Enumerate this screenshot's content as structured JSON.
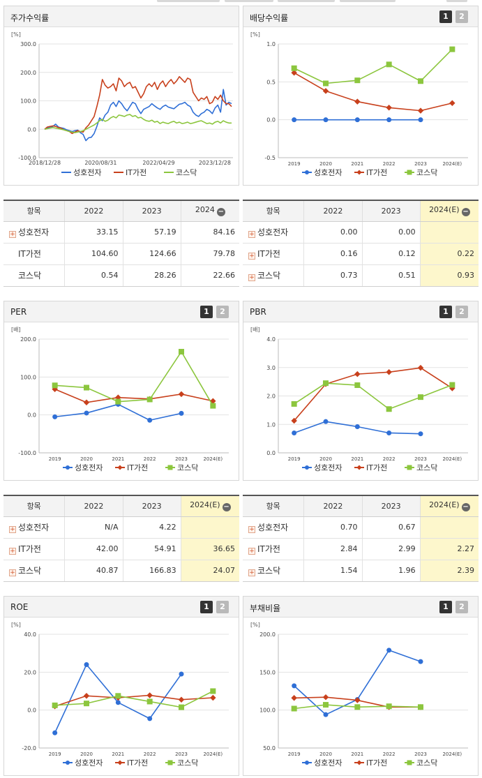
{
  "colors": {
    "s1": "#2f6fd6",
    "s2": "#c8401c",
    "s3": "#8cc63e"
  },
  "legend": [
    "성호전자",
    "IT가전",
    "코스닥"
  ],
  "charts": {
    "stock": {
      "title": "주가수익률",
      "unit": "[%]",
      "ylim": [
        -100,
        300
      ],
      "yticks": [
        "300.0",
        "200.0",
        "100.0",
        "0.0",
        "-100.0"
      ],
      "xticks": [
        "2018/12/28",
        "2020/08/31",
        "2022/04/29",
        "2023/12/28"
      ],
      "series": [
        {
          "name": "성호전자",
          "values": [
            0,
            5,
            8,
            10,
            18,
            8,
            5,
            3,
            -2,
            -5,
            -8,
            -5,
            -3,
            -12,
            -18,
            -40,
            -30,
            -28,
            -15,
            10,
            40,
            30,
            50,
            60,
            85,
            95,
            80,
            100,
            90,
            75,
            65,
            80,
            95,
            90,
            70,
            55,
            70,
            75,
            80,
            90,
            82,
            75,
            70,
            80,
            85,
            78,
            75,
            72,
            80,
            88,
            90,
            95,
            85,
            80,
            60,
            50,
            45,
            55,
            60,
            70,
            65,
            55,
            75,
            85,
            60,
            140,
            85,
            95,
            90
          ]
        },
        {
          "name": "IT가전",
          "values": [
            0,
            8,
            10,
            12,
            10,
            6,
            4,
            -2,
            -5,
            -8,
            -15,
            -10,
            -5,
            -8,
            -10,
            5,
            15,
            30,
            45,
            80,
            120,
            175,
            155,
            145,
            150,
            160,
            135,
            180,
            170,
            150,
            160,
            165,
            145,
            150,
            130,
            110,
            125,
            150,
            160,
            150,
            165,
            140,
            160,
            170,
            150,
            165,
            175,
            160,
            170,
            185,
            175,
            165,
            180,
            175,
            130,
            115,
            100,
            110,
            105,
            115,
            90,
            95,
            115,
            105,
            120,
            100,
            90,
            90,
            80
          ]
        },
        {
          "name": "코스닥",
          "values": [
            0,
            2,
            4,
            6,
            4,
            2,
            0,
            -2,
            -5,
            -8,
            -10,
            -12,
            -10,
            -8,
            -5,
            0,
            5,
            10,
            15,
            22,
            30,
            35,
            28,
            32,
            40,
            45,
            40,
            50,
            48,
            45,
            50,
            52,
            45,
            48,
            40,
            42,
            35,
            30,
            28,
            32,
            25,
            28,
            20,
            25,
            22,
            20,
            25,
            28,
            22,
            25,
            20,
            22,
            25,
            20,
            22,
            25,
            28,
            30,
            25,
            20,
            22,
            18,
            25,
            28,
            22,
            30,
            25,
            22,
            22
          ]
        }
      ]
    },
    "dividend": {
      "title": "배당수익률",
      "unit": "[%]",
      "pages": [
        "1",
        "2"
      ],
      "ylim": [
        -0.5,
        1.0
      ],
      "yticks": [
        "1.0",
        "0.5",
        "0.0",
        "-0.5"
      ],
      "x": [
        "2019",
        "2020",
        "2021",
        "2022",
        "2023",
        "2024(E)"
      ],
      "series": [
        {
          "name": "성호전자",
          "values": [
            0.0,
            0.0,
            0.0,
            0.0,
            0.0,
            null
          ]
        },
        {
          "name": "IT가전",
          "values": [
            0.62,
            0.38,
            0.24,
            0.16,
            0.12,
            0.22
          ]
        },
        {
          "name": "코스닥",
          "values": [
            0.68,
            0.48,
            0.52,
            0.73,
            0.51,
            0.93
          ]
        }
      ]
    },
    "per": {
      "title": "PER",
      "unit": "[배]",
      "pages": [
        "1",
        "2"
      ],
      "ylim": [
        -100,
        200
      ],
      "yticks": [
        "200.0",
        "100.0",
        "0.0",
        "-100.0"
      ],
      "x": [
        "2019",
        "2020",
        "2021",
        "2022",
        "2023",
        "2024(E)"
      ],
      "series": [
        {
          "name": "성호전자",
          "values": [
            -5,
            5,
            28,
            -14,
            4.22,
            null
          ]
        },
        {
          "name": "IT가전",
          "values": [
            68,
            33,
            46,
            42.0,
            54.91,
            36.65
          ]
        },
        {
          "name": "코스닥",
          "values": [
            78,
            72,
            35,
            40.87,
            166.83,
            24.07
          ]
        }
      ]
    },
    "pbr": {
      "title": "PBR",
      "unit": "[배]",
      "pages": [
        "1",
        "2"
      ],
      "ylim": [
        0,
        4
      ],
      "yticks": [
        "4.0",
        "3.0",
        "2.0",
        "1.0",
        "0.0"
      ],
      "x": [
        "2019",
        "2020",
        "2021",
        "2022",
        "2023",
        "2024(E)"
      ],
      "series": [
        {
          "name": "성호전자",
          "values": [
            0.7,
            1.1,
            0.92,
            0.7,
            0.67,
            null
          ]
        },
        {
          "name": "IT가전",
          "values": [
            1.13,
            2.42,
            2.77,
            2.84,
            2.99,
            2.27
          ]
        },
        {
          "name": "코스닥",
          "values": [
            1.72,
            2.45,
            2.38,
            1.54,
            1.96,
            2.39
          ]
        }
      ]
    },
    "roe": {
      "title": "ROE",
      "unit": "[%]",
      "pages": [
        "1",
        "2"
      ],
      "ylim": [
        -20,
        40
      ],
      "yticks": [
        "40.0",
        "20.0",
        "0.0",
        "-20.0"
      ],
      "x": [
        "2019",
        "2020",
        "2021",
        "2022",
        "2023",
        "2024(E)"
      ],
      "series": [
        {
          "name": "성호전자",
          "values": [
            -12,
            24,
            4,
            -4.5,
            19,
            null
          ]
        },
        {
          "name": "IT가전",
          "values": [
            2,
            7.5,
            6.5,
            7.8,
            5.5,
            6.5
          ]
        },
        {
          "name": "코스닥",
          "values": [
            2.5,
            3.5,
            7.5,
            4.5,
            1.5,
            10
          ]
        }
      ]
    },
    "debt": {
      "title": "부채비율",
      "unit": "[%]",
      "pages": [
        "1",
        "2"
      ],
      "ylim": [
        50,
        200
      ],
      "yticks": [
        "200.0",
        "150.0",
        "100.0",
        "50.0"
      ],
      "x": [
        "2019",
        "2020",
        "2021",
        "2022",
        "2023",
        "2024(E)"
      ],
      "series": [
        {
          "name": "성호전자",
          "values": [
            132,
            94,
            114,
            179,
            164,
            null
          ]
        },
        {
          "name": "IT가전",
          "values": [
            116,
            117,
            113,
            104,
            104,
            null
          ]
        },
        {
          "name": "코스닥",
          "values": [
            102,
            107,
            104,
            105,
            104,
            null
          ]
        }
      ]
    }
  },
  "tables": {
    "stock": {
      "head": [
        "항목",
        "2022",
        "2023",
        "2024"
      ],
      "rows": [
        {
          "label": "성호전자",
          "plus": true,
          "v": [
            "33.15",
            "57.19",
            "84.16"
          ]
        },
        {
          "label": "IT가전",
          "plus": false,
          "v": [
            "104.60",
            "124.66",
            "79.78"
          ]
        },
        {
          "label": "코스닥",
          "plus": false,
          "v": [
            "0.54",
            "28.26",
            "22.66"
          ]
        }
      ]
    },
    "dividend": {
      "head": [
        "항목",
        "2022",
        "2023",
        "2024(E)"
      ],
      "rows": [
        {
          "label": "성호전자",
          "plus": true,
          "v": [
            "0.00",
            "0.00",
            ""
          ]
        },
        {
          "label": "IT가전",
          "plus": true,
          "v": [
            "0.16",
            "0.12",
            "0.22"
          ]
        },
        {
          "label": "코스닥",
          "plus": true,
          "v": [
            "0.73",
            "0.51",
            "0.93"
          ]
        }
      ]
    },
    "per": {
      "head": [
        "항목",
        "2022",
        "2023",
        "2024(E)"
      ],
      "rows": [
        {
          "label": "성호전자",
          "plus": true,
          "v": [
            "N/A",
            "4.22",
            ""
          ]
        },
        {
          "label": "IT가전",
          "plus": true,
          "v": [
            "42.00",
            "54.91",
            "36.65"
          ]
        },
        {
          "label": "코스닥",
          "plus": true,
          "v": [
            "40.87",
            "166.83",
            "24.07"
          ]
        }
      ]
    },
    "pbr": {
      "head": [
        "항목",
        "2022",
        "2023",
        "2024(E)"
      ],
      "rows": [
        {
          "label": "성호전자",
          "plus": true,
          "v": [
            "0.70",
            "0.67",
            ""
          ]
        },
        {
          "label": "IT가전",
          "plus": true,
          "v": [
            "2.84",
            "2.99",
            "2.27"
          ]
        },
        {
          "label": "코스닥",
          "plus": true,
          "v": [
            "1.54",
            "1.96",
            "2.39"
          ]
        }
      ]
    }
  }
}
